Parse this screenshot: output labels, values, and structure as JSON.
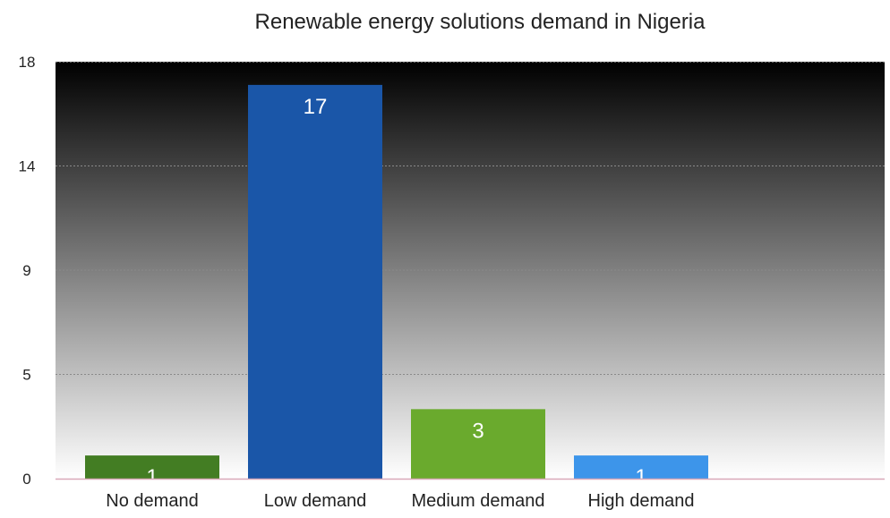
{
  "chart_data": {
    "type": "bar",
    "title": "Renewable energy solutions demand in Nigeria",
    "categories": [
      "No demand",
      "Low demand",
      "Medium demand",
      "High demand"
    ],
    "values": [
      1,
      17,
      3,
      1
    ],
    "data_labels": [
      "1",
      "17",
      "3",
      "1"
    ],
    "bar_colors": [
      "#437d23",
      "#1a56a8",
      "#6aaa2d",
      "#3d95ea"
    ],
    "y_ticks": [
      0,
      5,
      9,
      14,
      18
    ],
    "y_tick_labels": [
      "0",
      "5",
      "9",
      "14",
      "18"
    ],
    "ylim": [
      0,
      18
    ],
    "xlabel": "",
    "ylabel": "",
    "grid": true,
    "legend": "none",
    "background": "gradient black-to-white",
    "baseline_color": "#d9a8b8"
  }
}
